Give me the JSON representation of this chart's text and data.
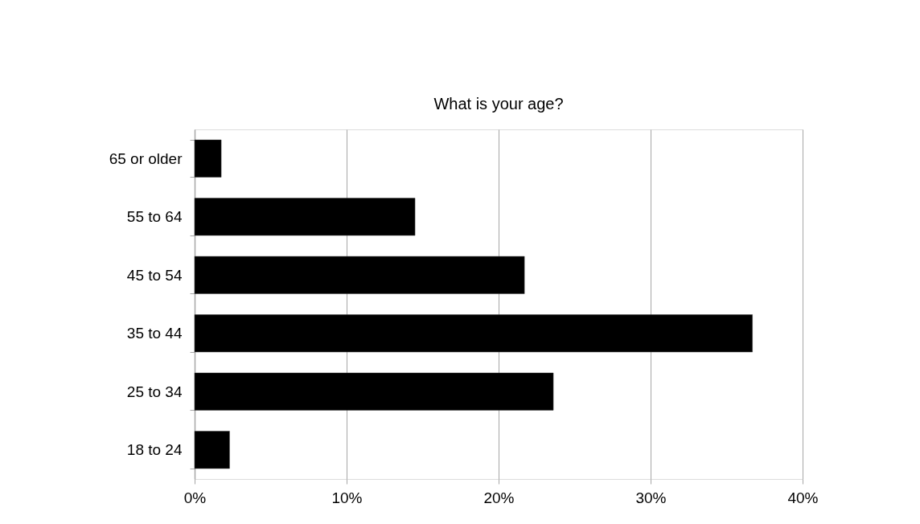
{
  "chart_data": {
    "type": "bar",
    "orientation": "horizontal",
    "title": "What is your age?",
    "categories": [
      "65 or older",
      "55 to 64",
      "45 to 54",
      "35 to 44",
      "25 to 34",
      "18 to 24"
    ],
    "values": [
      1.75,
      14.5,
      21.7,
      36.7,
      23.6,
      2.3
    ],
    "color": "#000000",
    "xlim": [
      0,
      40
    ],
    "xticks": [
      {
        "value": 0,
        "label": "0%"
      },
      {
        "value": 10,
        "label": "10%"
      },
      {
        "value": 20,
        "label": "20%"
      },
      {
        "value": 30,
        "label": "30%"
      },
      {
        "value": 40,
        "label": "40%"
      }
    ],
    "grid": "x"
  }
}
